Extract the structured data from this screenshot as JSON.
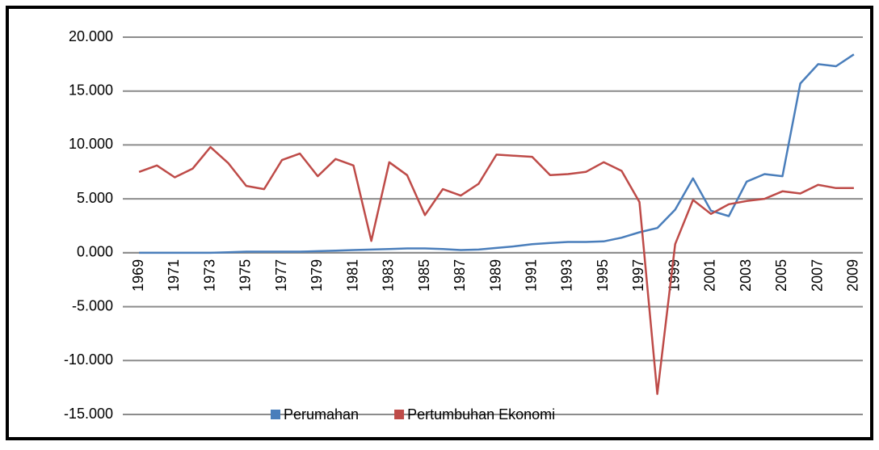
{
  "chart_data": {
    "type": "line",
    "categories": [
      "1969",
      null,
      "1971",
      null,
      "1973",
      null,
      "1975",
      null,
      "1977",
      null,
      "1979",
      null,
      "1981",
      null,
      "1983",
      null,
      "1985",
      null,
      "1987",
      null,
      "1989",
      null,
      "1991",
      null,
      "1993",
      null,
      "1995",
      null,
      "1997",
      null,
      "1999",
      null,
      "2001",
      null,
      "2003",
      null,
      "2005",
      null,
      "2007",
      null,
      "2009"
    ],
    "series": [
      {
        "name": "Perumahan",
        "color": "#4a7ebb",
        "values": [
          0.0,
          0.0,
          0.0,
          0.0,
          0.0,
          0.05,
          0.1,
          0.1,
          0.1,
          0.1,
          0.15,
          0.2,
          0.25,
          0.3,
          0.35,
          0.4,
          0.4,
          0.35,
          0.25,
          0.3,
          0.45,
          0.6,
          0.8,
          0.9,
          1.0,
          1.0,
          1.05,
          1.4,
          1.9,
          2.3,
          4.0,
          6.9,
          3.9,
          3.4,
          6.6,
          7.3,
          7.1,
          15.7,
          17.5,
          17.3,
          18.4
        ]
      },
      {
        "name": "Pertumbuhan Ekonomi",
        "color": "#be4b48",
        "values": [
          7.5,
          8.1,
          7.0,
          7.8,
          9.8,
          8.3,
          6.2,
          5.9,
          8.6,
          9.2,
          7.1,
          8.7,
          8.1,
          1.1,
          8.4,
          7.2,
          3.5,
          5.9,
          5.3,
          6.4,
          9.1,
          9.0,
          8.9,
          7.2,
          7.3,
          7.5,
          8.4,
          7.6,
          4.7,
          -13.1,
          0.8,
          4.9,
          3.6,
          4.5,
          4.8,
          5.0,
          5.7,
          5.5,
          6.3,
          6.0,
          6.0
        ]
      }
    ],
    "ylim": [
      -15,
      20
    ],
    "yticks": [
      {
        "value": -15,
        "label": "-15.000"
      },
      {
        "value": -10,
        "label": "-10.000"
      },
      {
        "value": -5,
        "label": "-5.000"
      },
      {
        "value": 0,
        "label": "0.000"
      },
      {
        "value": 5,
        "label": "5.000"
      },
      {
        "value": 10,
        "label": "10.000"
      },
      {
        "value": 15,
        "label": "15.000"
      },
      {
        "value": 20,
        "label": "20.000"
      }
    ],
    "grid": true,
    "legend": "bottom"
  }
}
